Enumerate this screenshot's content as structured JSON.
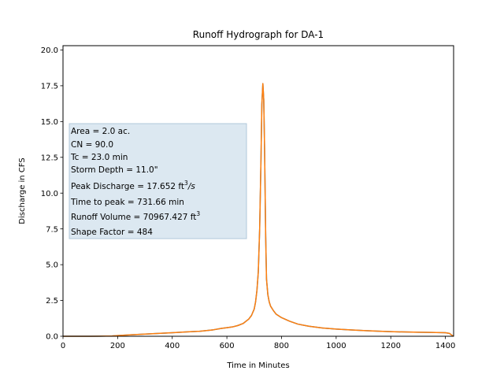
{
  "chart_data": {
    "type": "line",
    "title": "Runoff Hydrograph for DA-1",
    "xlabel": "Time in Minutes",
    "ylabel": "Discharge in CFS",
    "xlim": [
      0,
      1430
    ],
    "ylim": [
      0,
      20.3
    ],
    "xticks": [
      0,
      200,
      400,
      600,
      800,
      1000,
      1200,
      1400
    ],
    "yticks": [
      0.0,
      2.5,
      5.0,
      7.5,
      10.0,
      12.5,
      15.0,
      17.5,
      20.0
    ],
    "yticks_labels": [
      "0.0",
      "2.5",
      "5.0",
      "7.5",
      "10.0",
      "12.5",
      "15.0",
      "17.5",
      "20.0"
    ],
    "grid": false,
    "series": [
      {
        "color": "#1f77b4",
        "x": [
          0,
          100,
          180,
          200,
          250,
          300,
          350,
          400,
          450,
          500,
          550,
          580,
          600,
          620,
          640,
          660,
          680,
          690,
          700,
          705,
          710,
          715,
          720,
          725,
          728,
          731.66,
          735,
          738,
          742,
          745,
          750,
          755,
          760,
          770,
          780,
          800,
          830,
          860,
          900,
          950,
          1000,
          1050,
          1100,
          1150,
          1200,
          1250,
          1300,
          1350,
          1400,
          1415,
          1425,
          1430
        ],
        "y": [
          0,
          0,
          0.02,
          0.05,
          0.1,
          0.15,
          0.2,
          0.25,
          0.3,
          0.35,
          0.45,
          0.55,
          0.6,
          0.65,
          0.75,
          0.9,
          1.2,
          1.45,
          1.9,
          2.4,
          3.2,
          4.5,
          7.5,
          12.5,
          16.2,
          17.652,
          16.5,
          13.0,
          7.0,
          4.0,
          2.9,
          2.4,
          2.1,
          1.8,
          1.55,
          1.3,
          1.05,
          0.85,
          0.7,
          0.58,
          0.5,
          0.45,
          0.4,
          0.36,
          0.32,
          0.3,
          0.28,
          0.27,
          0.25,
          0.2,
          0.05,
          0
        ]
      },
      {
        "color": "#ff7f0e",
        "x": [
          0,
          100,
          180,
          200,
          250,
          300,
          350,
          400,
          450,
          500,
          550,
          580,
          600,
          620,
          640,
          660,
          680,
          690,
          700,
          705,
          710,
          715,
          720,
          725,
          728,
          731.66,
          735,
          738,
          742,
          745,
          750,
          755,
          760,
          770,
          780,
          800,
          830,
          860,
          900,
          950,
          1000,
          1050,
          1100,
          1150,
          1200,
          1250,
          1300,
          1350,
          1400,
          1415,
          1425,
          1430
        ],
        "y": [
          0,
          0,
          0.02,
          0.05,
          0.1,
          0.15,
          0.2,
          0.25,
          0.3,
          0.35,
          0.45,
          0.55,
          0.6,
          0.65,
          0.75,
          0.9,
          1.2,
          1.45,
          1.9,
          2.4,
          3.2,
          4.5,
          7.5,
          12.5,
          16.2,
          17.652,
          16.5,
          13.0,
          7.0,
          4.0,
          2.9,
          2.4,
          2.1,
          1.8,
          1.55,
          1.3,
          1.05,
          0.85,
          0.7,
          0.58,
          0.5,
          0.45,
          0.4,
          0.36,
          0.32,
          0.3,
          0.28,
          0.27,
          0.25,
          0.2,
          0.05,
          0
        ]
      }
    ],
    "annotation": {
      "box_color": "#dce8f1",
      "box_border": "#b0c7da",
      "lines": [
        {
          "text": "Area = 2.0 ac."
        },
        {
          "text": "CN = 90.0"
        },
        {
          "text": "Tc = 23.0 min"
        },
        {
          "text": "Storm Depth = 11.0\""
        },
        {
          "text": "Peak Discharge = 17.652 ft",
          "sup": "3",
          "tail": "/s",
          "tail_italic": true
        },
        {
          "text": "Time to peak = 731.66 min"
        },
        {
          "text": "Runoff Volume = 70967.427 ft",
          "sup": "3"
        },
        {
          "text": "Shape Factor = 484"
        }
      ]
    }
  }
}
